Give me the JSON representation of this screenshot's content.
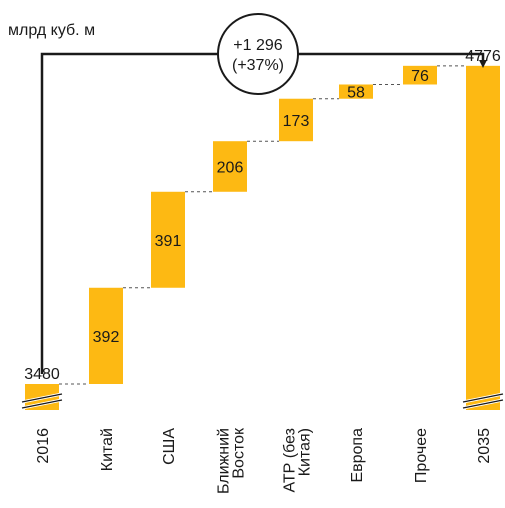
{
  "chart_data": {
    "type": "bar",
    "subtype": "waterfall",
    "unit_label": "млрд куб. м",
    "categories": [
      "2016",
      "Китай",
      "США",
      "Ближний Восток",
      "АТР (без Китая)",
      "Европа",
      "Прочее",
      "2035"
    ],
    "category_lines": [
      [
        "2016"
      ],
      [
        "Китай"
      ],
      [
        "США"
      ],
      [
        "Ближний",
        "Восток"
      ],
      [
        "АТР (без",
        "Китая)"
      ],
      [
        "Европа"
      ],
      [
        "Прочее"
      ],
      [
        "2035"
      ]
    ],
    "values": [
      3480,
      392,
      391,
      206,
      173,
      58,
      76,
      4776
    ],
    "value_labels": [
      "3480",
      "392",
      "391",
      "206",
      "173",
      "58",
      "76",
      "4776"
    ],
    "bar_kind": [
      "total",
      "delta",
      "delta",
      "delta",
      "delta",
      "delta",
      "delta",
      "total"
    ],
    "change_label_line1": "+1 296",
    "change_label_line2": "(+37%)",
    "colors": {
      "bar": "#FDB913",
      "text": "#1a1a1a",
      "connector": "#555555"
    }
  }
}
